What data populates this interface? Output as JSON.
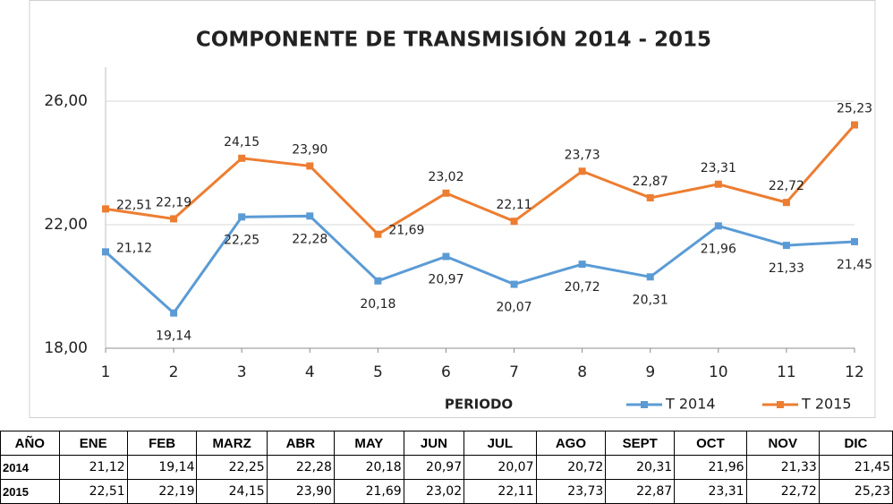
{
  "chart_data": {
    "type": "line",
    "title": "COMPONENTE  DE  TRANSMISIÓN   2014 - 2015",
    "x_label": "PERIODO",
    "categories": [
      1,
      2,
      3,
      4,
      5,
      6,
      7,
      8,
      9,
      10,
      11,
      12
    ],
    "series": [
      {
        "name": "T  2014",
        "color": "#5b9bd5",
        "values": [
          21.12,
          19.14,
          22.25,
          22.28,
          20.18,
          20.97,
          20.07,
          20.72,
          20.31,
          21.96,
          21.33,
          21.45
        ],
        "value_labels": [
          "21,12",
          "19,14",
          "22,25",
          "22,28",
          "20,18",
          "20,97",
          "20,07",
          "20,72",
          "20,31",
          "21,96",
          "21,33",
          "21,45"
        ]
      },
      {
        "name": "T  2015",
        "color": "#ed7d31",
        "values": [
          22.51,
          22.19,
          24.15,
          23.9,
          21.69,
          23.02,
          22.11,
          23.73,
          22.87,
          23.31,
          22.72,
          25.23
        ],
        "value_labels": [
          "22,51",
          "22,19",
          "24,15",
          "23,90",
          "21,69",
          "23,02",
          "22,11",
          "23,73",
          "22,87",
          "23,31",
          "22,72",
          "25,23"
        ]
      }
    ],
    "ylim": [
      18,
      27.1
    ],
    "yticks": [
      {
        "value": 18,
        "label": "18,00"
      },
      {
        "value": 22,
        "label": "22,00"
      },
      {
        "value": 26,
        "label": "26,00"
      }
    ],
    "grid": true,
    "legend": "bottom-right"
  },
  "table": {
    "header": [
      "AÑO",
      "ENE",
      "FEB",
      "MARZ",
      "ABR",
      "MAY",
      "JUN",
      "JUL",
      "AGO",
      "SEPT",
      "OCT",
      "NOV",
      "DIC"
    ],
    "rows": [
      [
        "2014",
        "21,12",
        "19,14",
        "22,25",
        "22,28",
        "20,18",
        "20,97",
        "20,07",
        "20,72",
        "20,31",
        "21,96",
        "21,33",
        "21,45"
      ],
      [
        "2015",
        "22,51",
        "22,19",
        "24,15",
        "23,90",
        "21,69",
        "23,02",
        "22,11",
        "23,73",
        "22,87",
        "23,31",
        "22,72",
        "25,23"
      ]
    ]
  }
}
